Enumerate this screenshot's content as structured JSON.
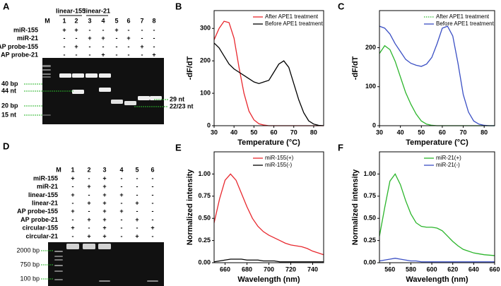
{
  "gel_a": {
    "label": "A",
    "groups": [
      "linear-155",
      "linear-21"
    ],
    "lanes": [
      "M",
      "1",
      "2",
      "3",
      "4",
      "5",
      "6",
      "7",
      "8"
    ],
    "rows": [
      {
        "name": "miR-155",
        "marks": [
          "+",
          "+",
          "-",
          "-",
          "+",
          "-",
          "-",
          "-"
        ]
      },
      {
        "name": "miR-21",
        "marks": [
          "-",
          "-",
          "+",
          "+",
          "-",
          "+",
          "-",
          "-"
        ]
      },
      {
        "name": "AP probe-155",
        "marks": [
          "-",
          "+",
          "-",
          "-",
          "-",
          "-",
          "+",
          "-"
        ]
      },
      {
        "name": "AP probe-21",
        "marks": [
          "-",
          "-",
          "-",
          "+",
          "-",
          "-",
          "-",
          "+"
        ]
      }
    ],
    "markers": [
      "40 bp",
      "44 nt",
      "20 bp",
      "15 nt",
      "29 nt",
      "22/23 nt"
    ]
  },
  "gel_d": {
    "label": "D",
    "lanes": [
      "M",
      "1",
      "2",
      "3",
      "4",
      "5",
      "6"
    ],
    "rows": [
      {
        "name": "miR-155",
        "marks": [
          "+",
          "-",
          "+",
          "-",
          "-",
          "-"
        ]
      },
      {
        "name": "miR-21",
        "marks": [
          "-",
          "+",
          "+",
          "-",
          "-",
          "-"
        ]
      },
      {
        "name": "linear-155",
        "marks": [
          "+",
          "-",
          "+",
          "+",
          "-",
          "-"
        ]
      },
      {
        "name": "linear-21",
        "marks": [
          "-",
          "+",
          "+",
          "-",
          "+",
          "-"
        ]
      },
      {
        "name": "AP probe-155",
        "marks": [
          "+",
          "-",
          "+",
          "+",
          "-",
          "-"
        ]
      },
      {
        "name": "AP probe-21",
        "marks": [
          "-",
          "+",
          "+",
          "-",
          "+",
          "-"
        ]
      },
      {
        "name": "circular-155",
        "marks": [
          "+",
          "-",
          "+",
          "-",
          "-",
          "+"
        ]
      },
      {
        "name": "circular-21",
        "marks": [
          "-",
          "+",
          "+",
          "-",
          "+",
          "-"
        ]
      }
    ],
    "markers": [
      "2000 bp",
      "750 bp",
      "100 bp"
    ]
  },
  "chart_data": [
    {
      "type": "line",
      "label": "B",
      "x_label": "Temperature (°C)",
      "y_label": "-dF/dT",
      "x": [
        30,
        32.5,
        35,
        37.5,
        40,
        42.5,
        45,
        47.5,
        50,
        52.5,
        55,
        57.5,
        60,
        62.5,
        65,
        67.5,
        70,
        72.5,
        75,
        77.5,
        80,
        82.5,
        85
      ],
      "series": [
        {
          "name": "After APE1 treatment",
          "color": "#e8282e",
          "values": [
            265,
            300,
            322,
            318,
            270,
            180,
            100,
            45,
            18,
            6,
            2,
            0,
            0,
            0,
            0,
            0,
            0,
            0,
            0,
            0,
            0,
            0,
            0
          ]
        },
        {
          "name": "Before APE1 treatment",
          "color": "#000000",
          "values": [
            255,
            240,
            215,
            190,
            175,
            165,
            155,
            145,
            135,
            130,
            135,
            140,
            165,
            190,
            200,
            180,
            130,
            80,
            40,
            15,
            5,
            1,
            0
          ]
        }
      ],
      "xlim": [
        30,
        85
      ],
      "xticks": [
        30,
        40,
        50,
        60,
        70,
        80
      ],
      "ylim": [
        0,
        355
      ],
      "yticks": [
        0,
        100,
        200,
        300
      ],
      "legend": "upper right"
    },
    {
      "type": "line",
      "label": "C",
      "x_label": "Temperature (°C)",
      "y_label": "-dF/dT",
      "x": [
        30,
        32.5,
        35,
        37.5,
        40,
        42.5,
        45,
        47.5,
        50,
        52.5,
        55,
        57.5,
        60,
        62.5,
        65,
        67.5,
        70,
        72.5,
        75,
        77.5,
        80,
        82.5,
        85
      ],
      "series": [
        {
          "name": "After APE1 treatment",
          "color": "#2bb52b",
          "dash": "dotted",
          "values": [
            185,
            205,
            195,
            165,
            125,
            85,
            55,
            30,
            12,
            4,
            1,
            0,
            0,
            0,
            0,
            0,
            0,
            0,
            0,
            0,
            0,
            0,
            0
          ]
        },
        {
          "name": "Before APE1 treatment",
          "color": "#3a4fc4",
          "values": [
            255,
            250,
            235,
            210,
            190,
            170,
            160,
            155,
            152,
            158,
            175,
            210,
            250,
            255,
            230,
            160,
            80,
            35,
            12,
            4,
            1,
            0,
            0
          ]
        }
      ],
      "xlim": [
        30,
        85
      ],
      "xticks": [
        30,
        40,
        50,
        60,
        70,
        80
      ],
      "ylim": [
        0,
        295
      ],
      "yticks": [
        0,
        100,
        200
      ],
      "legend": "upper right"
    },
    {
      "type": "line",
      "label": "E",
      "x_label": "Wavelength (nm)",
      "y_label": "Normalized intensity",
      "x": [
        650,
        655,
        660,
        665,
        670,
        675,
        680,
        685,
        690,
        695,
        700,
        705,
        710,
        715,
        720,
        725,
        730,
        735,
        740,
        745,
        750
      ],
      "series": [
        {
          "name": "miR-155(+)",
          "color": "#e8282e",
          "values": [
            0.45,
            0.72,
            0.93,
            1.0,
            0.93,
            0.78,
            0.63,
            0.5,
            0.41,
            0.35,
            0.31,
            0.28,
            0.25,
            0.22,
            0.2,
            0.19,
            0.18,
            0.16,
            0.13,
            0.11,
            0.09
          ]
        },
        {
          "name": "miR-155(-)",
          "color": "#000000",
          "values": [
            0.01,
            0.02,
            0.03,
            0.04,
            0.04,
            0.04,
            0.03,
            0.03,
            0.03,
            0.02,
            0.02,
            0.02,
            0.01,
            0.01,
            0.01,
            0.01,
            0.01,
            0.01,
            0.01,
            0.01,
            0.01
          ]
        }
      ],
      "xlim": [
        650,
        750
      ],
      "xticks": [
        660,
        680,
        700,
        720,
        740
      ],
      "ylim": [
        0,
        1.25
      ],
      "yticks": [
        {
          "value": 0,
          "label": "0.00"
        },
        {
          "value": 0.25,
          "label": "0.25"
        },
        {
          "value": 0.5,
          "label": "0.50"
        },
        {
          "value": 0.75,
          "label": "0.75"
        },
        {
          "value": 1,
          "label": "1.00"
        }
      ],
      "legend": "upper right"
    },
    {
      "type": "line",
      "label": "F",
      "x_label": "Wavelength (nm)",
      "y_label": "Normalized intensity",
      "x": [
        550,
        555,
        560,
        565,
        570,
        575,
        580,
        585,
        590,
        595,
        600,
        605,
        610,
        615,
        620,
        625,
        630,
        635,
        640,
        645,
        650,
        655,
        660
      ],
      "series": [
        {
          "name": "miR-21(+)",
          "color": "#2bb52b",
          "values": [
            0.3,
            0.62,
            0.92,
            1.0,
            0.88,
            0.7,
            0.55,
            0.45,
            0.41,
            0.4,
            0.4,
            0.39,
            0.36,
            0.3,
            0.24,
            0.19,
            0.15,
            0.13,
            0.11,
            0.1,
            0.09,
            0.085,
            0.08
          ]
        },
        {
          "name": "miR-21(-)",
          "color": "#3a4fc4",
          "values": [
            0.02,
            0.03,
            0.04,
            0.05,
            0.04,
            0.03,
            0.02,
            0.02,
            0.01,
            0.01,
            0.01,
            0.01,
            0.01,
            0.01,
            0.01,
            0.01,
            0.01,
            0.01,
            0.01,
            0.01,
            0.01,
            0.01,
            0.01
          ]
        }
      ],
      "xlim": [
        550,
        660
      ],
      "xticks": [
        560,
        580,
        600,
        620,
        640,
        660
      ],
      "ylim": [
        0,
        1.25
      ],
      "yticks": [
        {
          "value": 0,
          "label": "0.00"
        },
        {
          "value": 0.25,
          "label": "0.25"
        },
        {
          "value": 0.5,
          "label": "0.50"
        },
        {
          "value": 0.75,
          "label": "0.75"
        },
        {
          "value": 1,
          "label": "1.00"
        }
      ],
      "legend": "upper right"
    }
  ]
}
